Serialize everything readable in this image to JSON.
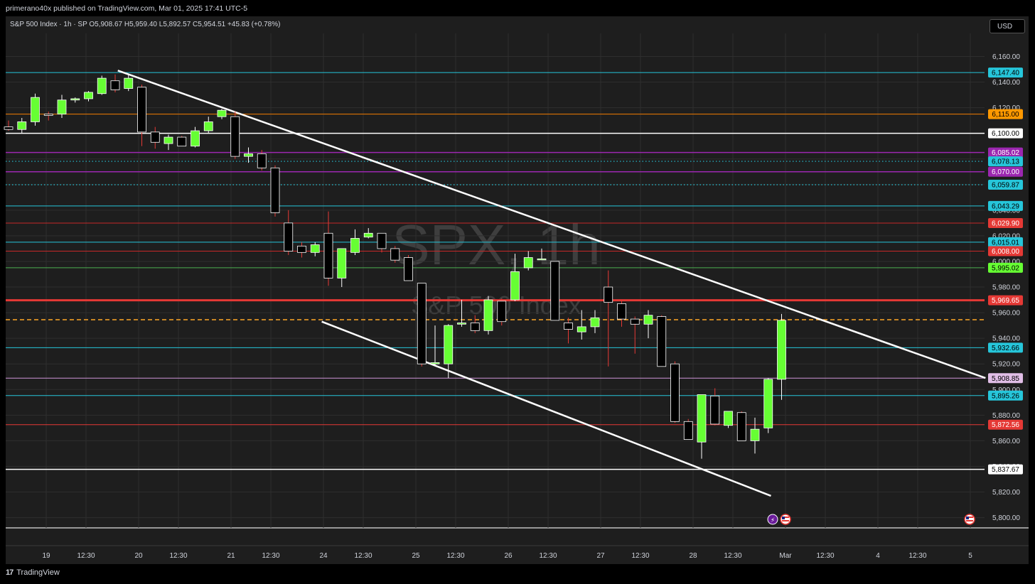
{
  "header": {
    "published_text": "primerano40x published on TradingView.com, Mar 01, 2025 17:41 UTC-5"
  },
  "currency": "USD",
  "footer": {
    "logo_mark": "17",
    "brand": "TradingView"
  },
  "legend_text": "S&P 500 Index · 1h · SP  O5,908.67  H5,959.40  L5,892.57  C5,954.51  +45.83 (+0.78%)",
  "watermark": {
    "line1": "SPX, 1h",
    "line2": "S&P 500 Index"
  },
  "chart_data": {
    "type": "candlestick",
    "y_range": [
      5792,
      6178
    ],
    "y_ticks": [
      6160,
      6140,
      6120,
      6100,
      6080,
      6060,
      6040,
      6020,
      6000,
      5980,
      5960,
      5940,
      5920,
      5900,
      5880,
      5860,
      5840,
      5820,
      5800
    ],
    "y_tick_labels": [
      "6,160.00",
      "6,140.00",
      "6,120.00",
      "6,100.00",
      "6,080.00",
      "6,060.00",
      "6,040.00",
      "6,020.00",
      "6,000.00",
      "5,980.00",
      "5,960.00",
      "5,940.00",
      "5,920.00",
      "5,900.00",
      "5,880.00",
      "5,860.00",
      "5,840.00",
      "5,820.00",
      "5,800.00"
    ],
    "x_labels": [
      "19",
      "12:30",
      "20",
      "12:30",
      "21",
      "12:30",
      "24",
      "12:30",
      "25",
      "12:30",
      "26",
      "12:30",
      "27",
      "12:30",
      "28",
      "12:30",
      "Mar",
      "12:30",
      "4",
      "12:30",
      "5"
    ],
    "bar_index_range": [
      0,
      73
    ],
    "candles": [
      [
        6105,
        6110,
        6102,
        6103
      ],
      [
        6103,
        6112,
        6100,
        6109
      ],
      [
        6109,
        6131,
        6106,
        6128
      ],
      [
        6115,
        6117,
        6110,
        6114
      ],
      [
        6115,
        6130,
        6112,
        6126
      ],
      [
        6126,
        6128,
        6124,
        6127
      ],
      [
        6127,
        6133,
        6125,
        6132
      ],
      [
        6131,
        6145,
        6130,
        6143
      ],
      [
        6141,
        6146,
        6132,
        6134
      ],
      [
        6135,
        6146,
        6133,
        6143
      ],
      [
        6136,
        6138,
        6090,
        6101
      ],
      [
        6101,
        6105,
        6088,
        6093
      ],
      [
        6092,
        6099,
        6087,
        6097
      ],
      [
        6097,
        6098,
        6090,
        6090
      ],
      [
        6090,
        6105,
        6089,
        6102
      ],
      [
        6102,
        6113,
        6100,
        6109
      ],
      [
        6113,
        6119,
        6111,
        6118
      ],
      [
        6113,
        6117,
        6080,
        6082
      ],
      [
        6082,
        6089,
        6077,
        6084
      ],
      [
        6084,
        6087,
        6071,
        6073
      ],
      [
        6073,
        6075,
        6035,
        6038
      ],
      [
        6030,
        6040,
        6005,
        6008
      ],
      [
        6012,
        6015,
        6003,
        6007
      ],
      [
        6007,
        6015,
        6004,
        6013
      ],
      [
        6022,
        6039,
        5981,
        5987
      ],
      [
        5987,
        6010,
        5980,
        6010
      ],
      [
        6007,
        6025,
        6005,
        6018
      ],
      [
        6019,
        6026,
        6018,
        6022
      ],
      [
        6022,
        6022,
        6007,
        6010
      ],
      [
        6010,
        6012,
        5999,
        6001
      ],
      [
        6003,
        6005,
        5985,
        5985
      ],
      [
        5983,
        5983,
        5918,
        5920
      ],
      [
        5920,
        5950,
        5919,
        5921
      ],
      [
        5920,
        5951,
        5909,
        5950
      ],
      [
        5951,
        5970,
        5949,
        5952
      ],
      [
        5952,
        5958,
        5944,
        5946
      ],
      [
        5946,
        5973,
        5943,
        5970
      ],
      [
        5969,
        5971,
        5950,
        5953
      ],
      [
        5970,
        6006,
        5969,
        5992
      ],
      [
        5995,
        6008,
        5993,
        6003
      ],
      [
        6002,
        6010,
        6001,
        6002
      ],
      [
        6000,
        6000,
        5955,
        5954
      ],
      [
        5952,
        5956,
        5936,
        5947
      ],
      [
        5945,
        5962,
        5939,
        5949
      ],
      [
        5949,
        5962,
        5944,
        5956
      ],
      [
        5980,
        5993,
        5918,
        5968
      ],
      [
        5967,
        5970,
        5949,
        5955
      ],
      [
        5955,
        5957,
        5928,
        5951
      ],
      [
        5951,
        5962,
        5940,
        5958
      ],
      [
        5957,
        5958,
        5918,
        5918
      ],
      [
        5920,
        5922,
        5874,
        5875
      ],
      [
        5875,
        5877,
        5863,
        5861
      ],
      [
        5859,
        5896,
        5846,
        5896
      ],
      [
        5895,
        5901,
        5872,
        5873
      ],
      [
        5872,
        5883,
        5870,
        5883
      ],
      [
        5882,
        5883,
        5860,
        5860
      ],
      [
        5860,
        5878,
        5850,
        5869
      ],
      [
        5870,
        5909,
        5866,
        5908
      ],
      [
        5908,
        5959,
        5892,
        5954
      ]
    ],
    "trendlines": [
      {
        "from": [
          8.2,
          6149
        ],
        "to": [
          73.3,
          5909
        ]
      },
      {
        "from": [
          23.5,
          5953
        ],
        "to": [
          57.2,
          5817
        ]
      }
    ],
    "levels": [
      {
        "price": 6147.4,
        "label": "6,147.40",
        "line_color": "#26c6da",
        "badge_bg": "#26c6da",
        "badge_text": "#000000",
        "style": "solid",
        "width": 1
      },
      {
        "price": 6115.0,
        "label": "6,115.00",
        "line_color": "#f57c00",
        "badge_bg": "#ff9800",
        "badge_text": "#000000",
        "style": "solid",
        "width": 1
      },
      {
        "price": 6100.0,
        "label": "6,100.00",
        "line_color": "#ffffff",
        "badge_bg": "#ffffff",
        "badge_text": "#000000",
        "style": "solid",
        "width": 1.5
      },
      {
        "price": 6085.02,
        "label": "6,085.02",
        "line_color": "#9c27b0",
        "badge_bg": "#9c27b0",
        "badge_text": "#ffffff",
        "style": "solid",
        "width": 1.5
      },
      {
        "price": 6078.13,
        "label": "6,078.13",
        "line_color": "#26c6da",
        "badge_bg": "#26c6da",
        "badge_text": "#000000",
        "style": "dotted",
        "width": 1.2
      },
      {
        "price": 6070.0,
        "label": "6,070.00",
        "line_color": "#9c27b0",
        "badge_bg": "#9c27b0",
        "badge_text": "#ffffff",
        "style": "solid",
        "width": 1.5
      },
      {
        "price": 6059.87,
        "label": "6,059.87",
        "line_color": "#26c6da",
        "badge_bg": "#26c6da",
        "badge_text": "#000000",
        "style": "dotted",
        "width": 1.2
      },
      {
        "price": 6043.29,
        "label": "6,043.29",
        "line_color": "#26c6da",
        "badge_bg": "#26c6da",
        "badge_text": "#000000",
        "style": "solid",
        "width": 1
      },
      {
        "price": 6029.9,
        "label": "6,029.90",
        "line_color": "#c62828",
        "badge_bg": "#e53935",
        "badge_text": "#ffffff",
        "style": "solid",
        "width": 1
      },
      {
        "price": 6015.01,
        "label": "6,015.01",
        "line_color": "#26c6da",
        "badge_bg": "#26c6da",
        "badge_text": "#000000",
        "style": "solid",
        "width": 1
      },
      {
        "price": 6008.0,
        "label": "6,008.00",
        "line_color": "#c62828",
        "badge_bg": "#e53935",
        "badge_text": "#ffffff",
        "style": "solid",
        "width": 1
      },
      {
        "price": 5995.02,
        "label": "5,995.02",
        "line_color": "#4caf50",
        "badge_bg": "#66ff33",
        "badge_text": "#000000",
        "style": "solid",
        "width": 1
      },
      {
        "price": 5969.65,
        "label": "5,969.65",
        "line_color": "#e53935",
        "badge_bg": "#e53935",
        "badge_text": "#ffffff",
        "style": "solid",
        "width": 3
      },
      {
        "price": 5954.51,
        "label": "",
        "line_color": "#ffa726",
        "badge_bg": "#ffa726",
        "badge_text": "#000000",
        "style": "dashed",
        "width": 1.5
      },
      {
        "price": 5932.66,
        "label": "5,932.66",
        "line_color": "#26c6da",
        "badge_bg": "#26c6da",
        "badge_text": "#000000",
        "style": "solid",
        "width": 1
      },
      {
        "price": 5908.85,
        "label": "5,908.85",
        "line_color": "#ce93d8",
        "badge_bg": "#e1bee7",
        "badge_text": "#000000",
        "style": "solid",
        "width": 1
      },
      {
        "price": 5895.26,
        "label": "5,895.26",
        "line_color": "#26c6da",
        "badge_bg": "#26c6da",
        "badge_text": "#000000",
        "style": "solid",
        "width": 1
      },
      {
        "price": 5872.56,
        "label": "5,872.56",
        "line_color": "#e53935",
        "badge_bg": "#e53935",
        "badge_text": "#ffffff",
        "style": "solid",
        "width": 1
      },
      {
        "price": 5837.67,
        "label": "5,837.67",
        "line_color": "#ffffff",
        "badge_bg": "#ffffff",
        "badge_text": "#000000",
        "style": "solid",
        "width": 1.5
      }
    ],
    "colors": {
      "up": "#66ff33",
      "down": "#000000",
      "wick_up": "#ffffff",
      "wick_down": "#e53935",
      "trendline": "#ffffff",
      "grid": "#2e2e2e"
    }
  }
}
